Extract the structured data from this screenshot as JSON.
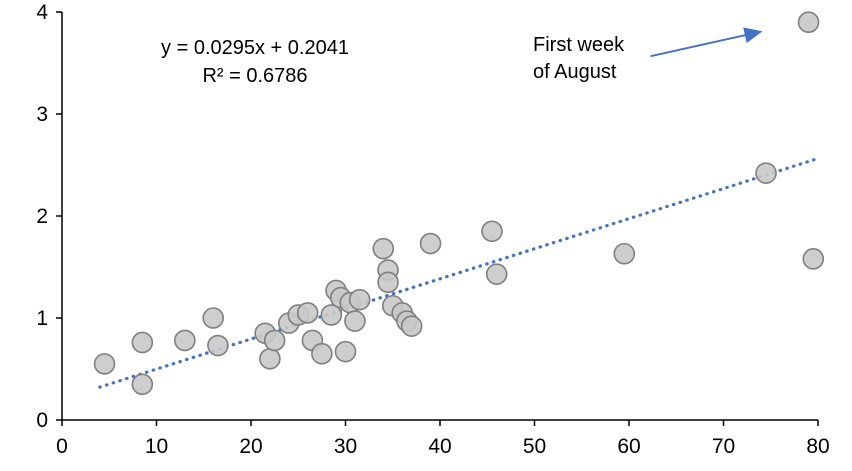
{
  "chart_data": {
    "type": "scatter",
    "title": "",
    "xlabel": "",
    "ylabel": "",
    "xlim": [
      0,
      80
    ],
    "ylim": [
      0,
      4
    ],
    "x_ticks": [
      0,
      10,
      20,
      30,
      40,
      50,
      60,
      70,
      80
    ],
    "y_ticks": [
      0,
      1,
      2,
      3,
      4
    ],
    "grid": false,
    "legend": false,
    "points": [
      [
        4.5,
        0.55
      ],
      [
        8.5,
        0.76
      ],
      [
        8.5,
        0.35
      ],
      [
        13,
        0.78
      ],
      [
        16,
        1.0
      ],
      [
        16.5,
        0.73
      ],
      [
        21.5,
        0.85
      ],
      [
        22,
        0.6
      ],
      [
        22.5,
        0.78
      ],
      [
        24,
        0.95
      ],
      [
        25,
        1.03
      ],
      [
        26,
        1.05
      ],
      [
        26.5,
        0.78
      ],
      [
        27.5,
        0.65
      ],
      [
        28.5,
        1.03
      ],
      [
        29,
        1.27
      ],
      [
        29.5,
        1.2
      ],
      [
        30,
        0.67
      ],
      [
        30.5,
        1.15
      ],
      [
        31,
        0.97
      ],
      [
        31.5,
        1.18
      ],
      [
        34,
        1.68
      ],
      [
        34.5,
        1.47
      ],
      [
        34.5,
        1.35
      ],
      [
        35,
        1.12
      ],
      [
        36,
        1.05
      ],
      [
        36.5,
        0.97
      ],
      [
        37,
        0.92
      ],
      [
        39,
        1.73
      ],
      [
        45.5,
        1.85
      ],
      [
        46,
        1.43
      ],
      [
        59.5,
        1.63
      ],
      [
        74.5,
        2.42
      ],
      [
        79,
        3.9
      ],
      [
        79.5,
        1.58
      ]
    ],
    "marker": {
      "fill": "#c9c9c9",
      "stroke": "#7f7f7f"
    },
    "trendline": {
      "slope": 0.0295,
      "intercept": 0.2041,
      "x_start": 4,
      "x_end": 80,
      "color": "#4472c4",
      "style": "dotted"
    },
    "equation_label": {
      "line1": "y = 0.0295x + 0.2041",
      "line2": "R² = 0.6786"
    },
    "annotation": {
      "line1": "First week",
      "line2": "of August",
      "target_point": [
        79,
        3.9
      ],
      "arrow_color": "#4472c4"
    }
  }
}
